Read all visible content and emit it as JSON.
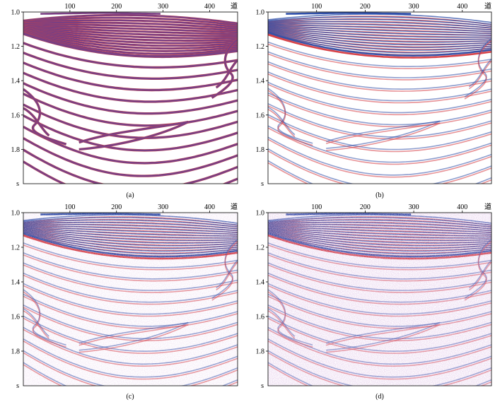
{
  "figure": {
    "panels": [
      {
        "id": "a",
        "caption": "(a)",
        "style": "wiggle",
        "x_axis": {
          "tick_labels": [
            "100",
            "200",
            "300",
            "400"
          ],
          "tick_values": [
            100,
            200,
            300,
            400
          ],
          "unit_label": "道",
          "range": [
            0,
            460
          ]
        },
        "y_axis": {
          "tick_labels": [
            "1.0",
            "1.2",
            "1.4",
            "1.6",
            "1.8"
          ],
          "tick_values": [
            1.0,
            1.2,
            1.4,
            1.6,
            1.8
          ],
          "unit_label": "s",
          "range": [
            1.0,
            2.0
          ]
        }
      },
      {
        "id": "b",
        "caption": "(b)",
        "style": "density",
        "x_axis": {
          "tick_labels": [
            "100",
            "200",
            "300",
            "400"
          ],
          "tick_values": [
            100,
            200,
            300,
            400
          ],
          "unit_label": "道",
          "range": [
            0,
            460
          ]
        },
        "y_axis": {
          "tick_labels": [
            "1.0",
            "1.2",
            "1.4",
            "1.6",
            "1.8"
          ],
          "tick_values": [
            1.0,
            1.2,
            1.4,
            1.6,
            1.8
          ],
          "unit_label": "s",
          "range": [
            1.0,
            2.0
          ]
        }
      },
      {
        "id": "c",
        "caption": "(c)",
        "style": "density-noise-light",
        "x_axis": {
          "tick_labels": [
            "100",
            "200",
            "300",
            "400"
          ],
          "tick_values": [
            100,
            200,
            300,
            400
          ],
          "unit_label": "道",
          "range": [
            0,
            460
          ]
        },
        "y_axis": {
          "tick_labels": [
            "1.0",
            "1.2",
            "1.4",
            "1.6",
            "1.8"
          ],
          "tick_values": [
            1.0,
            1.2,
            1.4,
            1.6,
            1.8
          ],
          "unit_label": "s",
          "range": [
            1.0,
            2.0
          ]
        }
      },
      {
        "id": "d",
        "caption": "(d)",
        "style": "density-noise-heavy",
        "x_axis": {
          "tick_labels": [
            "100",
            "200",
            "300",
            "400"
          ],
          "tick_values": [
            100,
            200,
            300,
            400
          ],
          "unit_label": "道",
          "range": [
            0,
            460
          ]
        },
        "y_axis": {
          "tick_labels": [
            "1.0",
            "1.2",
            "1.4",
            "1.6",
            "1.8"
          ],
          "tick_values": [
            1.0,
            1.2,
            1.4,
            1.6,
            1.8
          ],
          "unit_label": "s",
          "range": [
            1.0,
            2.0
          ]
        }
      }
    ],
    "colors": {
      "positive": "#d6393f",
      "negative": "#2f4fa8",
      "wiggle": "#7a3f83",
      "wiggle_edge": "#c9454a",
      "axis": "#000000",
      "background": "#ffffff"
    }
  }
}
